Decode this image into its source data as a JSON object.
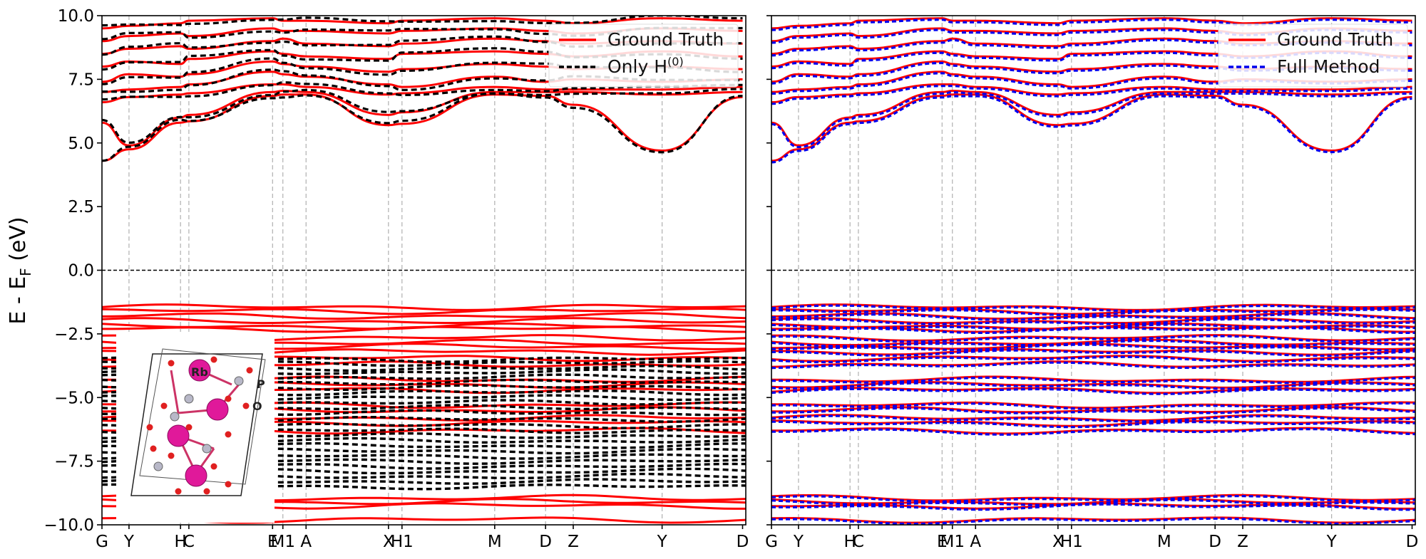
{
  "ylabel": "E - E",
  "ylabel_sub": "F",
  "ylabel_unit": " (eV)",
  "ylim": [
    -10,
    10
  ],
  "yticks": [
    {
      "v": 10,
      "label": "10.0"
    },
    {
      "v": 7.5,
      "label": "7.5"
    },
    {
      "v": 5,
      "label": "5.0"
    },
    {
      "v": 2.5,
      "label": "2.5"
    },
    {
      "v": 0,
      "label": "0.0"
    },
    {
      "v": -2.5,
      "label": "−2.5"
    },
    {
      "v": -5,
      "label": "−5.0"
    },
    {
      "v": -7.5,
      "label": "−7.5"
    },
    {
      "v": -10,
      "label": "−10.0"
    }
  ],
  "kpoints": [
    {
      "label": "G",
      "pos": 0.0
    },
    {
      "label": "Y",
      "pos": 0.042
    },
    {
      "label": "H",
      "pos": 0.122
    },
    {
      "label": "C",
      "pos": 0.135
    },
    {
      "label": "E",
      "pos": 0.265
    },
    {
      "label": "M1",
      "pos": 0.281
    },
    {
      "label": "A",
      "pos": 0.317
    },
    {
      "label": "X",
      "pos": 0.445
    },
    {
      "label": "H1",
      "pos": 0.466
    },
    {
      "label": "M",
      "pos": 0.61
    },
    {
      "label": "D",
      "pos": 0.689
    },
    {
      "label": "Z",
      "pos": 0.732
    },
    {
      "label": "Y",
      "pos": 0.87
    },
    {
      "label": "D",
      "pos": 0.995
    }
  ],
  "fermi_level": 0.0,
  "inset_labels": [
    "Rb",
    "P",
    "O"
  ],
  "colors": {
    "ground_truth": "#ff0000",
    "only_h0": "#000000",
    "full_method": "#0000ee",
    "grid": "#b0b0b0"
  },
  "chart_data": [
    {
      "type": "line",
      "panel": "left",
      "ylim": [
        -10,
        10
      ],
      "legend": {
        "position": "top-right",
        "entries": [
          {
            "label": "Ground Truth",
            "style": "solid",
            "color": "#ff0000"
          },
          {
            "label": "Only H",
            "sup": "(0)",
            "style": "dashed",
            "color": "#000000"
          }
        ]
      },
      "series": [
        {
          "name": "Ground Truth",
          "values_description_only_in_script": true
        },
        {
          "name": "Only H(0)"
        }
      ]
    },
    {
      "type": "line",
      "panel": "right",
      "ylim": [
        -10,
        10
      ],
      "legend": {
        "position": "top-right",
        "entries": [
          {
            "label": "Ground Truth",
            "style": "solid",
            "color": "#ff0000"
          },
          {
            "label": "Full Method",
            "style": "dashed",
            "color": "#0000ee"
          }
        ]
      },
      "series": [
        {
          "name": "Ground Truth"
        },
        {
          "name": "Full Method"
        }
      ]
    }
  ],
  "bands": {
    "conduction": [
      {
        "x": [
          0,
          0.042,
          0.122,
          0.135,
          0.265,
          0.281,
          0.317,
          0.445,
          0.466,
          0.61,
          0.689,
          0.732,
          0.87,
          0.995
        ],
        "y": [
          4.3,
          4.75,
          5.8,
          5.85,
          6.85,
          6.9,
          6.9,
          5.7,
          5.75,
          6.9,
          6.85,
          6.5,
          4.7,
          6.8
        ]
      },
      {
        "x": [
          0,
          0.042,
          0.122,
          0.135,
          0.265,
          0.281,
          0.317,
          0.445,
          0.466,
          0.61,
          0.689,
          0.732,
          0.87,
          0.995
        ],
        "y": [
          5.8,
          4.9,
          6.0,
          6.1,
          7.0,
          7.05,
          7.0,
          6.1,
          6.2,
          7.0,
          7.0,
          7.0,
          6.9,
          7.0
        ]
      },
      {
        "x": [
          0,
          0.042,
          0.122,
          0.135,
          0.265,
          0.281,
          0.317,
          0.445,
          0.466,
          0.61,
          0.689,
          0.732,
          0.87,
          0.995
        ],
        "y": [
          6.6,
          6.8,
          6.9,
          6.95,
          7.3,
          7.3,
          7.2,
          6.9,
          6.95,
          7.2,
          7.1,
          7.1,
          7.1,
          7.2
        ]
      },
      {
        "x": [
          0,
          0.042,
          0.122,
          0.135,
          0.265,
          0.281,
          0.317,
          0.445,
          0.466,
          0.61,
          0.689,
          0.732,
          0.87,
          0.995
        ],
        "y": [
          7.0,
          7.1,
          7.2,
          7.3,
          7.8,
          7.7,
          7.6,
          7.3,
          7.2,
          7.6,
          7.4,
          7.5,
          7.4,
          7.5
        ]
      },
      {
        "x": [
          0,
          0.042,
          0.122,
          0.135,
          0.265,
          0.281,
          0.317,
          0.445,
          0.466,
          0.61,
          0.689,
          0.732,
          0.87,
          0.995
        ],
        "y": [
          7.4,
          7.7,
          7.6,
          7.7,
          8.2,
          8.1,
          8.0,
          7.8,
          7.9,
          8.1,
          8.0,
          7.9,
          8.0,
          7.9
        ]
      },
      {
        "x": [
          0,
          0.042,
          0.122,
          0.135,
          0.265,
          0.281,
          0.317,
          0.445,
          0.466,
          0.61,
          0.689,
          0.732,
          0.87,
          0.995
        ],
        "y": [
          8.0,
          8.2,
          8.1,
          8.3,
          8.6,
          8.5,
          8.4,
          8.3,
          8.5,
          8.6,
          8.5,
          8.4,
          8.6,
          8.4
        ]
      },
      {
        "x": [
          0,
          0.042,
          0.122,
          0.135,
          0.265,
          0.281,
          0.317,
          0.445,
          0.466,
          0.61,
          0.689,
          0.732,
          0.87,
          0.995
        ],
        "y": [
          8.5,
          8.7,
          8.8,
          8.7,
          9.0,
          9.1,
          8.9,
          8.8,
          8.9,
          9.1,
          9.0,
          8.9,
          9.0,
          8.9
        ]
      },
      {
        "x": [
          0,
          0.042,
          0.122,
          0.135,
          0.265,
          0.281,
          0.317,
          0.445,
          0.466,
          0.61,
          0.689,
          0.732,
          0.87,
          0.995
        ],
        "y": [
          9.0,
          9.2,
          9.3,
          9.2,
          9.5,
          9.4,
          9.4,
          9.3,
          9.4,
          9.5,
          9.4,
          9.3,
          9.5,
          9.4
        ]
      },
      {
        "x": [
          0,
          0.042,
          0.122,
          0.135,
          0.265,
          0.281,
          0.317,
          0.445,
          0.466,
          0.61,
          0.689,
          0.732,
          0.87,
          0.995
        ],
        "y": [
          9.5,
          9.6,
          9.7,
          9.8,
          9.9,
          9.8,
          9.8,
          9.7,
          9.8,
          9.9,
          9.8,
          9.7,
          9.9,
          9.8
        ]
      }
    ],
    "valence_gt": [
      -1.45,
      -1.6,
      -1.8,
      -2.0,
      -2.2,
      -2.3,
      -2.65,
      -2.85,
      -3.0,
      -3.2,
      -3.45,
      -3.7,
      -4.3,
      -4.5,
      -4.7,
      -5.3,
      -5.5,
      -5.8,
      -6.0,
      -6.3,
      -8.95,
      -9.1,
      -9.25,
      -9.8
    ],
    "valence_h0": [
      -3.5,
      -3.65,
      -3.85,
      -4.0,
      -4.2,
      -4.4,
      -4.6,
      -4.8,
      -5.0,
      -5.2,
      -5.4,
      -5.6,
      -5.85,
      -6.1,
      -6.3,
      -6.5,
      -6.7,
      -6.9,
      -7.1,
      -7.3,
      -7.5,
      -7.7,
      -7.9,
      -8.1,
      -8.3,
      -8.5
    ]
  }
}
